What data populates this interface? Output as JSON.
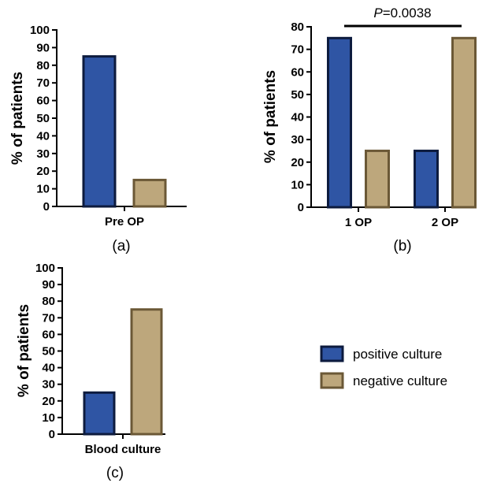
{
  "colors": {
    "positive_fill": "#2f55a4",
    "positive_stroke": "#0d1b3e",
    "negative_fill": "#bda77c",
    "negative_stroke": "#6b5836"
  },
  "legend": {
    "positive": "positive culture",
    "negative": "negative culture"
  },
  "chart_data": [
    {
      "panel": "(a)",
      "type": "bar",
      "ylabel": "% of patients",
      "ylim": [
        0,
        100
      ],
      "yticks": [
        0,
        10,
        20,
        30,
        40,
        50,
        60,
        70,
        80,
        90,
        100
      ],
      "groups": [
        {
          "label": "Pre OP",
          "positive": 85,
          "negative": 15
        }
      ]
    },
    {
      "panel": "(b)",
      "type": "bar",
      "ylabel": "% of patients",
      "ylim": [
        0,
        80
      ],
      "yticks": [
        0,
        10,
        20,
        30,
        40,
        50,
        60,
        70,
        80
      ],
      "annotation": {
        "prefix": "P",
        "text": "=0.0038"
      },
      "groups": [
        {
          "label": "1 OP",
          "positive": 75,
          "negative": 25
        },
        {
          "label": "2 OP",
          "positive": 25,
          "negative": 75
        }
      ]
    },
    {
      "panel": "(c)",
      "type": "bar",
      "ylabel": "% of patients",
      "ylim": [
        0,
        100
      ],
      "yticks": [
        0,
        10,
        20,
        30,
        40,
        50,
        60,
        70,
        80,
        90,
        100
      ],
      "groups": [
        {
          "label": "Blood culture",
          "positive": 25,
          "negative": 75
        }
      ]
    }
  ]
}
